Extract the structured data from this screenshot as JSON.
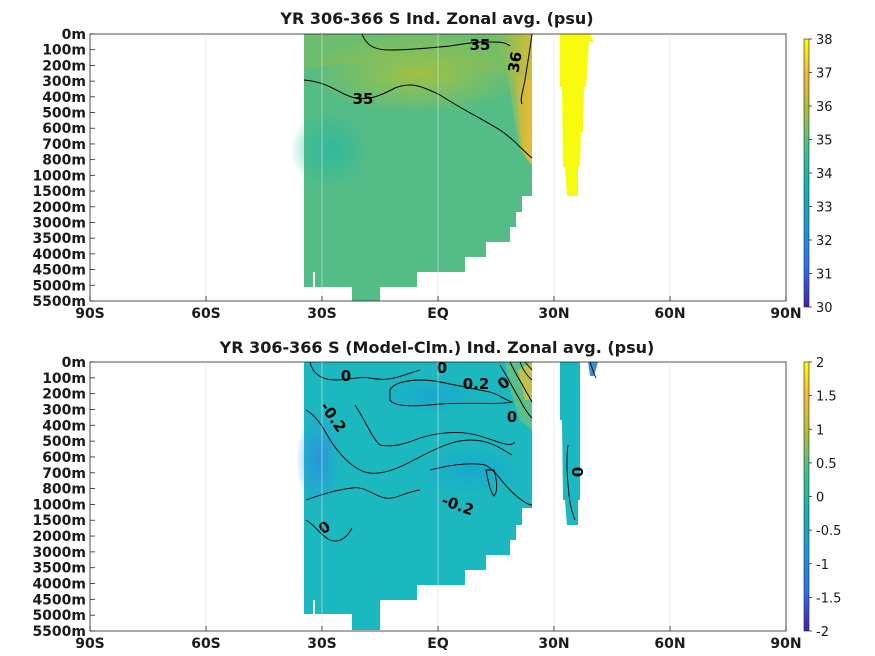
{
  "chart_data": [
    {
      "type": "heatmap",
      "title": "YR 306-366 S Ind. Zonal avg. (psu)",
      "x_ticks": [
        "90S",
        "60S",
        "30S",
        "EQ",
        "30N",
        "60N",
        "90N"
      ],
      "x_values": [
        -90,
        -60,
        -30,
        0,
        30,
        60,
        90
      ],
      "y_ticks": [
        "0m",
        "100m",
        "200m",
        "300m",
        "400m",
        "500m",
        "600m",
        "700m",
        "800m",
        "1000m",
        "1500m",
        "2000m",
        "3000m",
        "3500m",
        "4000m",
        "4500m",
        "5000m",
        "5500m"
      ],
      "colorbar": {
        "ticks": [
          "30",
          "31",
          "32",
          "33",
          "34",
          "35",
          "36",
          "37",
          "38"
        ],
        "min": 30,
        "max": 38
      },
      "contour_labels": [
        "35",
        "36",
        "35"
      ],
      "grid": true
    },
    {
      "type": "heatmap",
      "title": "YR 306-366 S (Model-Clm.) Ind. Zonal avg. (psu)",
      "x_ticks": [
        "90S",
        "60S",
        "30S",
        "EQ",
        "30N",
        "60N",
        "90N"
      ],
      "x_values": [
        -90,
        -60,
        -30,
        0,
        30,
        60,
        90
      ],
      "y_ticks": [
        "0m",
        "100m",
        "200m",
        "300m",
        "400m",
        "500m",
        "600m",
        "700m",
        "800m",
        "1000m",
        "1500m",
        "2000m",
        "3000m",
        "3500m",
        "4000m",
        "4500m",
        "5000m",
        "5500m"
      ],
      "colorbar": {
        "ticks": [
          "-2",
          "-1.5",
          "-1",
          "-0.5",
          "0",
          "0.5",
          "1",
          "1.5",
          "2"
        ],
        "min": -2,
        "max": 2
      },
      "contour_labels": [
        "0",
        "0",
        "0.2",
        "0",
        "-0.2",
        "0",
        "-0.2",
        "0",
        "0"
      ],
      "grid": true
    }
  ]
}
